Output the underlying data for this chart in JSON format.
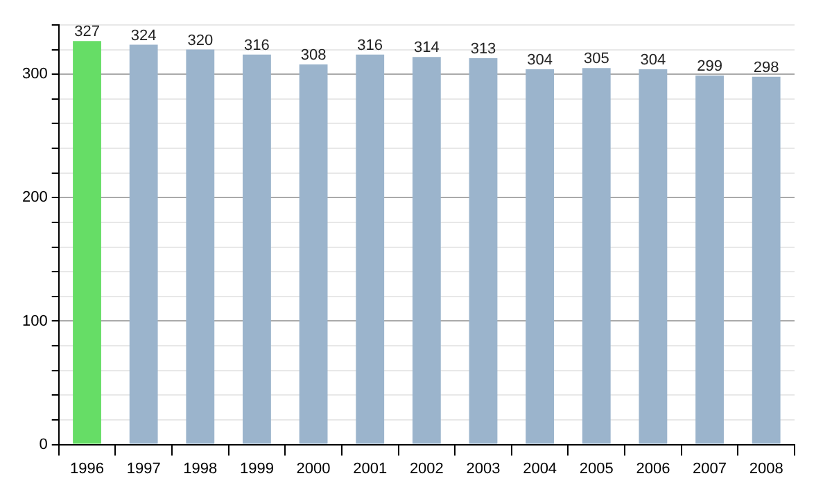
{
  "chart_data": {
    "type": "bar",
    "categories": [
      "1996",
      "1997",
      "1998",
      "1999",
      "2000",
      "2001",
      "2002",
      "2003",
      "2004",
      "2005",
      "2006",
      "2007",
      "2008"
    ],
    "values": [
      327,
      324,
      320,
      316,
      308,
      316,
      314,
      313,
      304,
      305,
      304,
      299,
      298
    ],
    "colors": [
      "#66dd66",
      "#9bb4cc",
      "#9bb4cc",
      "#9bb4cc",
      "#9bb4cc",
      "#9bb4cc",
      "#9bb4cc",
      "#9bb4cc",
      "#9bb4cc",
      "#9bb4cc",
      "#9bb4cc",
      "#9bb4cc",
      "#9bb4cc"
    ],
    "ylim": [
      0,
      340
    ],
    "yticks": [
      0,
      {
        "value": 20,
        "label": null
      },
      {
        "value": 40,
        "label": null
      },
      {
        "value": 60,
        "label": null
      },
      {
        "value": 80,
        "label": null
      },
      100,
      {
        "value": 120,
        "label": null
      },
      {
        "value": 140,
        "label": null
      },
      {
        "value": 160,
        "label": null
      },
      {
        "value": 180,
        "label": null
      },
      200,
      {
        "value": 220,
        "label": null
      },
      {
        "value": 240,
        "label": null
      },
      {
        "value": 260,
        "label": null
      },
      {
        "value": 280,
        "label": null
      },
      300,
      {
        "value": 320,
        "label": null
      },
      {
        "value": 340,
        "label": null
      }
    ],
    "grid": true,
    "data_labels": true,
    "legend": false
  }
}
